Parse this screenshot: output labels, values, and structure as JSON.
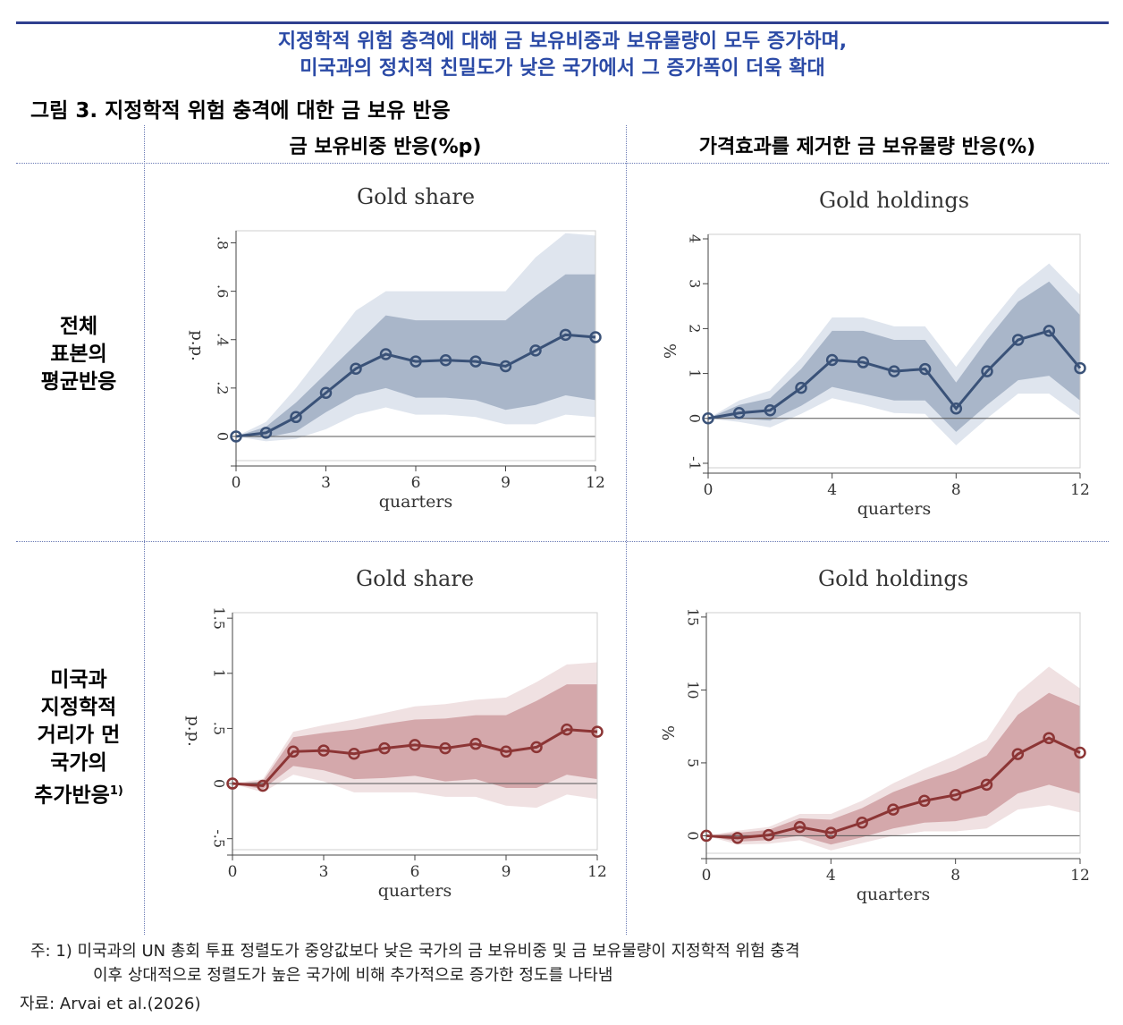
{
  "headline": {
    "line1": "지정학적 위험 충격에 대해 금 보유비중과 보유물량이 모두 증가하며,",
    "line2": "미국과의 정치적 친밀도가 낮은 국가에서 그 증가폭이 더욱 확대"
  },
  "figure_title": "그림 3. 지정학적 위험 충격에 대한 금 보유 반응",
  "column_headers": {
    "left": "금 보유비중 반응(%p)",
    "right": "가격효과를 제거한 금 보유물량 반응(%)"
  },
  "row_labels": {
    "top": [
      "전체",
      "표본의",
      "평균반응"
    ],
    "bottom": [
      "미국과",
      "지정학적",
      "거리가 먼",
      "국가의"
    ],
    "bottom_last": "추가반응",
    "bottom_sup": "1)"
  },
  "note": {
    "line1": "주: 1) 미국과의 UN 총회 투표 정렬도가 중앙값보다 낮은 국가의 금 보유비중 및 금 보유물량이 지정학적 위험 충격",
    "line2": "이후 상대적으로 정렬도가 높은 국가에 비해 추가적으로 증가한 정도를 나타냄"
  },
  "source": "자료: Arvai et al.(2026)",
  "colors": {
    "blue_line": "#3a5278",
    "blue_band_inner": "#a9b6c9",
    "blue_band_outer": "#dfe5ee",
    "red_line": "#8c3535",
    "red_band_inner": "#d4a8ab",
    "red_band_outer": "#f0e1e2"
  },
  "chart_data": [
    {
      "type": "line",
      "title": "Gold share",
      "xlabel": "quarters",
      "ylabel": "p.p.",
      "xlim": [
        0,
        12
      ],
      "ylim": [
        -0.1,
        0.85
      ],
      "xticks": [
        0,
        3,
        6,
        9,
        12
      ],
      "xtick_labels": [
        "0",
        "3",
        "6",
        "9",
        "12"
      ],
      "yticks": [
        0,
        0.2,
        0.4,
        0.6,
        0.8
      ],
      "ytick_labels": [
        "0",
        ".2",
        ".4",
        ".6",
        ".8"
      ],
      "color_scheme": "blue",
      "x": [
        0,
        1,
        2,
        3,
        4,
        5,
        6,
        7,
        8,
        9,
        10,
        11,
        12
      ],
      "values": [
        0,
        0.015,
        0.08,
        0.18,
        0.28,
        0.34,
        0.31,
        0.315,
        0.31,
        0.29,
        0.355,
        0.42,
        0.41
      ],
      "band_inner_upper": [
        0,
        0.04,
        0.14,
        0.26,
        0.38,
        0.5,
        0.48,
        0.48,
        0.48,
        0.48,
        0.58,
        0.67,
        0.67
      ],
      "band_inner_lower": [
        0,
        -0.005,
        0.02,
        0.1,
        0.17,
        0.2,
        0.16,
        0.16,
        0.15,
        0.11,
        0.13,
        0.17,
        0.15
      ],
      "band_outer_upper": [
        0,
        0.06,
        0.2,
        0.36,
        0.52,
        0.6,
        0.6,
        0.6,
        0.6,
        0.6,
        0.74,
        0.84,
        0.83
      ],
      "band_outer_lower": [
        0,
        -0.02,
        -0.01,
        0.03,
        0.09,
        0.12,
        0.09,
        0.09,
        0.08,
        0.05,
        0.05,
        0.09,
        0.08
      ]
    },
    {
      "type": "line",
      "title": "Gold holdings",
      "xlabel": "quarters",
      "ylabel": "%",
      "xlim": [
        0,
        12
      ],
      "ylim": [
        -1.1,
        4.1
      ],
      "xticks": [
        0,
        4,
        8,
        12
      ],
      "xtick_labels": [
        "0",
        "4",
        "8",
        "12"
      ],
      "yticks": [
        -1,
        0,
        1,
        2,
        3,
        4
      ],
      "ytick_labels": [
        "-1",
        "0",
        "1",
        "2",
        "3",
        "4"
      ],
      "color_scheme": "blue",
      "x": [
        0,
        1,
        2,
        3,
        4,
        5,
        6,
        7,
        8,
        9,
        10,
        11,
        12
      ],
      "values": [
        0,
        0.12,
        0.18,
        0.68,
        1.3,
        1.25,
        1.05,
        1.1,
        0.22,
        1.05,
        1.75,
        1.95,
        1.12
      ],
      "band_inner_upper": [
        0,
        0.3,
        0.45,
        1.1,
        1.95,
        1.95,
        1.75,
        1.75,
        0.8,
        1.75,
        2.6,
        3.05,
        2.3
      ],
      "band_inner_lower": [
        0,
        0.0,
        -0.05,
        0.28,
        0.7,
        0.55,
        0.4,
        0.4,
        -0.3,
        0.3,
        0.85,
        0.95,
        0.4
      ],
      "band_outer_upper": [
        0,
        0.4,
        0.62,
        1.35,
        2.25,
        2.25,
        2.05,
        2.05,
        1.15,
        2.05,
        2.9,
        3.45,
        2.75
      ],
      "band_outer_lower": [
        0,
        -0.08,
        -0.2,
        0.1,
        0.45,
        0.3,
        0.12,
        0.1,
        -0.6,
        0.0,
        0.55,
        0.55,
        0.05
      ]
    },
    {
      "type": "line",
      "title": "Gold share",
      "xlabel": "quarters",
      "ylabel": "p.p.",
      "xlim": [
        0,
        12
      ],
      "ylim": [
        -0.6,
        1.55
      ],
      "xticks": [
        0,
        3,
        6,
        9,
        12
      ],
      "xtick_labels": [
        "0",
        "3",
        "6",
        "9",
        "12"
      ],
      "yticks": [
        -0.5,
        0,
        0.5,
        1,
        1.5
      ],
      "ytick_labels": [
        "-.5",
        "0",
        ".5",
        "1",
        "1.5"
      ],
      "color_scheme": "red",
      "x": [
        0,
        1,
        2,
        3,
        4,
        5,
        6,
        7,
        8,
        9,
        10,
        11,
        12
      ],
      "values": [
        0,
        -0.02,
        0.29,
        0.3,
        0.27,
        0.32,
        0.35,
        0.32,
        0.36,
        0.29,
        0.33,
        0.49,
        0.47
      ],
      "band_inner_upper": [
        0,
        0.02,
        0.42,
        0.46,
        0.49,
        0.54,
        0.58,
        0.59,
        0.62,
        0.62,
        0.75,
        0.9,
        0.9
      ],
      "band_inner_lower": [
        0,
        -0.05,
        0.16,
        0.12,
        0.04,
        0.05,
        0.07,
        0.02,
        0.04,
        -0.04,
        -0.04,
        0.08,
        0.04
      ],
      "band_outer_upper": [
        0,
        0.04,
        0.47,
        0.53,
        0.58,
        0.64,
        0.7,
        0.72,
        0.76,
        0.78,
        0.92,
        1.08,
        1.1
      ],
      "band_outer_lower": [
        0,
        -0.08,
        0.08,
        0.02,
        -0.08,
        -0.08,
        -0.08,
        -0.12,
        -0.12,
        -0.2,
        -0.22,
        -0.1,
        -0.14
      ]
    },
    {
      "type": "line",
      "title": "Gold holdings",
      "xlabel": "quarters",
      "ylabel": "%",
      "xlim": [
        0,
        12
      ],
      "ylim": [
        -1.2,
        15.3
      ],
      "xticks": [
        0,
        4,
        8,
        12
      ],
      "xtick_labels": [
        "0",
        "4",
        "8",
        "12"
      ],
      "yticks": [
        0,
        5,
        10,
        15
      ],
      "ytick_labels": [
        "0",
        "5",
        "10",
        "15"
      ],
      "color_scheme": "red",
      "x": [
        0,
        1,
        2,
        3,
        4,
        5,
        6,
        7,
        8,
        9,
        10,
        11,
        12
      ],
      "values": [
        0,
        -0.15,
        0.05,
        0.6,
        0.2,
        0.9,
        1.8,
        2.4,
        2.8,
        3.5,
        5.6,
        6.7,
        5.7
      ],
      "band_inner_upper": [
        0,
        0.2,
        0.4,
        1.2,
        1.1,
        1.9,
        3.0,
        3.8,
        4.5,
        5.5,
        8.3,
        9.8,
        8.9
      ],
      "band_inner_lower": [
        0,
        -0.4,
        -0.3,
        0.0,
        -0.6,
        -0.1,
        0.5,
        0.9,
        1.0,
        1.4,
        2.9,
        3.5,
        2.9
      ],
      "band_outer_upper": [
        0,
        0.35,
        0.6,
        1.5,
        1.5,
        2.4,
        3.6,
        4.6,
        5.5,
        6.6,
        9.8,
        11.6,
        10.1
      ],
      "band_outer_lower": [
        0,
        -0.6,
        -0.55,
        -0.3,
        -1.0,
        -0.5,
        0.0,
        0.3,
        0.3,
        0.5,
        1.8,
        2.1,
        1.6
      ]
    }
  ]
}
